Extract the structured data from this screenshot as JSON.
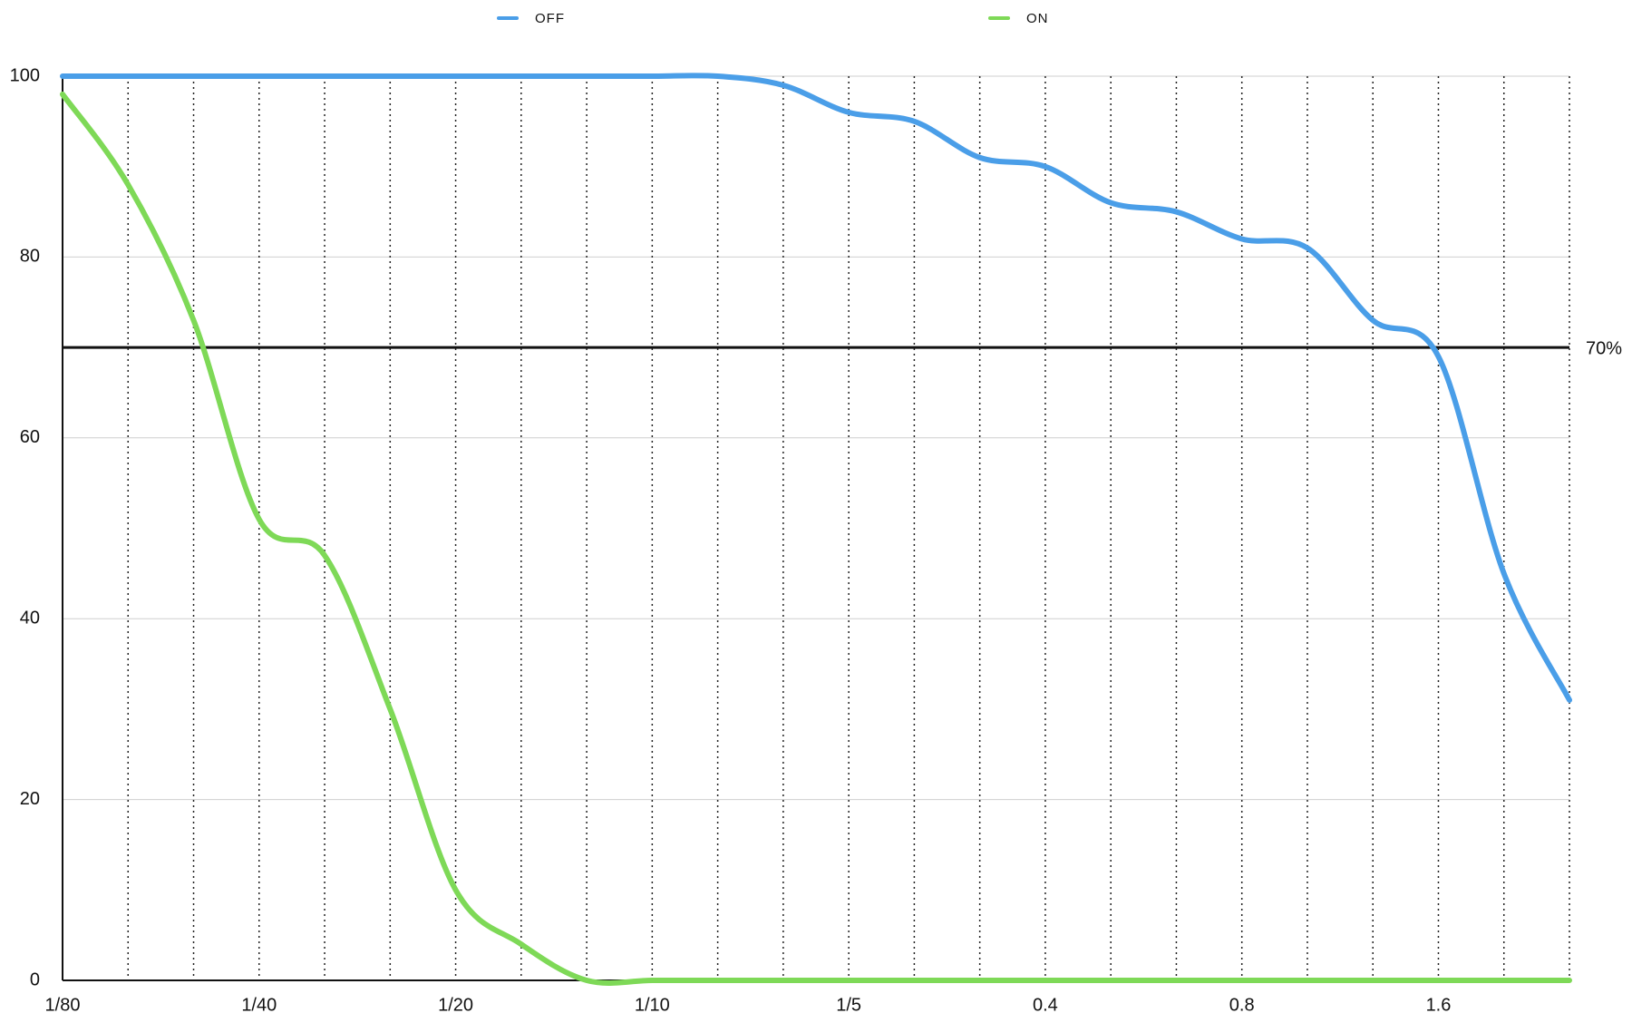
{
  "chart_data": {
    "type": "line",
    "categories": [
      "1/80",
      null,
      null,
      "1/40",
      null,
      null,
      "1/20",
      null,
      null,
      "1/10",
      null,
      null,
      "1/5",
      null,
      null,
      "0.4",
      null,
      null,
      "0.8",
      null,
      null,
      "1.6",
      null,
      null
    ],
    "series": [
      {
        "name": "OFF",
        "color": "#4a9ee8",
        "values": [
          100,
          100,
          100,
          100,
          100,
          100,
          100,
          100,
          100,
          100,
          100,
          99,
          96,
          95,
          91,
          90,
          86,
          85,
          82,
          81,
          73,
          69,
          45,
          31
        ]
      },
      {
        "name": "ON",
        "color": "#7ed957",
        "values": [
          98,
          88,
          73,
          51,
          47,
          30,
          10,
          4,
          0,
          0,
          0,
          0,
          0,
          0,
          0,
          0,
          0,
          0,
          0,
          0,
          0,
          0,
          0,
          0
        ]
      }
    ],
    "ylim": [
      0,
      100
    ],
    "yticks": [
      0,
      20,
      40,
      60,
      80,
      100
    ],
    "grid": true,
    "legend": "top",
    "reference_line": {
      "value": 70,
      "label": "70%"
    }
  }
}
